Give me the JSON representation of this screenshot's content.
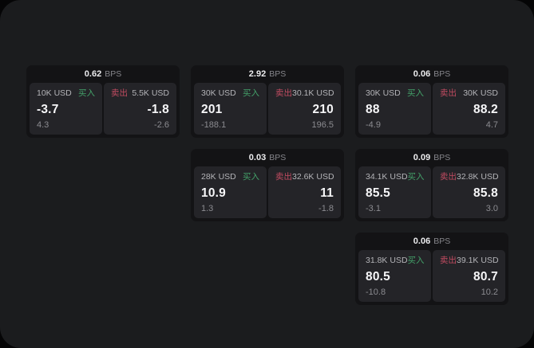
{
  "labels": {
    "buy": "买入",
    "sell": "卖出",
    "bps_unit": "BPS"
  },
  "colors": {
    "buy_green": "#43a169",
    "sell_red": "#c14b61",
    "window_bg": "#1b1c1e",
    "card_bg": "#131315",
    "panel_bg": "#242428",
    "value_text": "#f6f6f8",
    "muted_text": "#8b8b90"
  },
  "cards": [
    {
      "col": 1,
      "row": 1,
      "bps": "0.62",
      "buy": {
        "amount": "10K USD",
        "value": "-3.7",
        "sub": "4.3"
      },
      "sell": {
        "amount": "5.5K USD",
        "value": "-1.8",
        "sub": "-2.6"
      }
    },
    {
      "col": 2,
      "row": 1,
      "bps": "2.92",
      "buy": {
        "amount": "30K USD",
        "value": "201",
        "sub": "-188.1"
      },
      "sell": {
        "amount": "30.1K USD",
        "value": "210",
        "sub": "196.5"
      }
    },
    {
      "col": 3,
      "row": 1,
      "bps": "0.06",
      "buy": {
        "amount": "30K USD",
        "value": "88",
        "sub": "-4.9"
      },
      "sell": {
        "amount": "30K USD",
        "value": "88.2",
        "sub": "4.7"
      }
    },
    {
      "col": 2,
      "row": 2,
      "bps": "0.03",
      "buy": {
        "amount": "28K USD",
        "value": "10.9",
        "sub": "1.3"
      },
      "sell": {
        "amount": "32.6K USD",
        "value": "11",
        "sub": "-1.8"
      }
    },
    {
      "col": 3,
      "row": 2,
      "bps": "0.09",
      "buy": {
        "amount": "34.1K USD",
        "value": "85.5",
        "sub": "-3.1"
      },
      "sell": {
        "amount": "32.8K USD",
        "value": "85.8",
        "sub": "3.0"
      }
    },
    {
      "col": 3,
      "row": 3,
      "bps": "0.06",
      "buy": {
        "amount": "31.8K USD",
        "value": "80.5",
        "sub": "-10.8"
      },
      "sell": {
        "amount": "39.1K USD",
        "value": "80.7",
        "sub": "10.2"
      }
    }
  ]
}
